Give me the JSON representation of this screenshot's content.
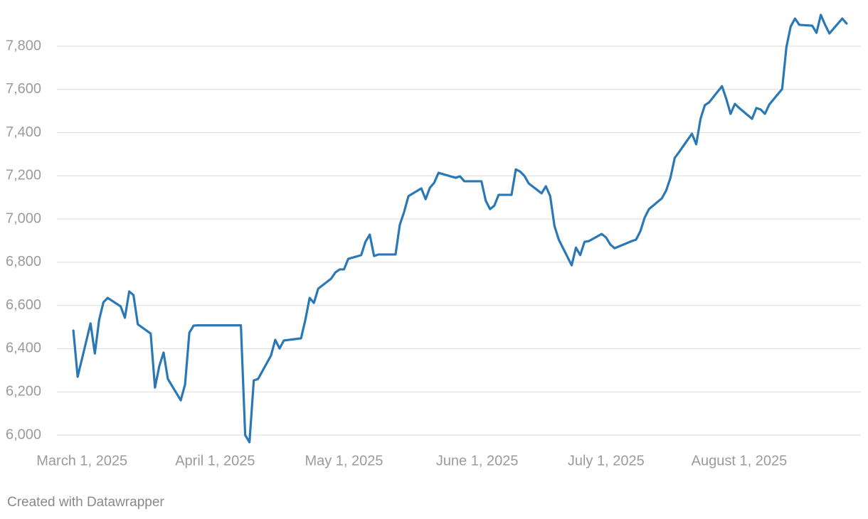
{
  "chart_data": {
    "type": "line",
    "x": [
      "2025-02-27",
      "2025-02-28",
      "2025-03-03",
      "2025-03-04",
      "2025-03-05",
      "2025-03-06",
      "2025-03-07",
      "2025-03-10",
      "2025-03-11",
      "2025-03-12",
      "2025-03-13",
      "2025-03-14",
      "2025-03-17",
      "2025-03-18",
      "2025-03-19",
      "2025-03-20",
      "2025-03-21",
      "2025-03-24",
      "2025-03-25",
      "2025-03-26",
      "2025-03-27",
      "2025-03-28",
      "2025-03-31",
      "2025-04-01",
      "2025-04-02",
      "2025-04-03",
      "2025-04-04",
      "2025-04-07",
      "2025-04-08",
      "2025-04-09",
      "2025-04-10",
      "2025-04-11",
      "2025-04-14",
      "2025-04-15",
      "2025-04-16",
      "2025-04-17",
      "2025-04-21",
      "2025-04-22",
      "2025-04-23",
      "2025-04-24",
      "2025-04-25",
      "2025-04-28",
      "2025-04-29",
      "2025-04-30",
      "2025-05-01",
      "2025-05-02",
      "2025-05-05",
      "2025-05-06",
      "2025-05-07",
      "2025-05-08",
      "2025-05-09",
      "2025-05-12",
      "2025-05-13",
      "2025-05-14",
      "2025-05-15",
      "2025-05-16",
      "2025-05-19",
      "2025-05-20",
      "2025-05-21",
      "2025-05-22",
      "2025-05-23",
      "2025-05-27",
      "2025-05-28",
      "2025-05-29",
      "2025-05-30",
      "2025-06-02",
      "2025-06-03",
      "2025-06-04",
      "2025-06-05",
      "2025-06-06",
      "2025-06-09",
      "2025-06-10",
      "2025-06-11",
      "2025-06-12",
      "2025-06-13",
      "2025-06-16",
      "2025-06-17",
      "2025-06-18",
      "2025-06-19",
      "2025-06-20",
      "2025-06-23",
      "2025-06-24",
      "2025-06-25",
      "2025-06-26",
      "2025-06-27",
      "2025-06-30",
      "2025-07-01",
      "2025-07-02",
      "2025-07-03",
      "2025-07-07",
      "2025-07-08",
      "2025-07-09",
      "2025-07-10",
      "2025-07-11",
      "2025-07-14",
      "2025-07-15",
      "2025-07-16",
      "2025-07-17",
      "2025-07-18",
      "2025-07-21",
      "2025-07-22",
      "2025-07-23",
      "2025-07-24",
      "2025-07-25",
      "2025-07-28",
      "2025-07-29",
      "2025-07-30",
      "2025-07-31",
      "2025-08-01",
      "2025-08-04",
      "2025-08-05",
      "2025-08-06",
      "2025-08-07",
      "2025-08-08",
      "2025-08-11",
      "2025-08-12",
      "2025-08-13",
      "2025-08-14",
      "2025-08-15",
      "2025-08-18",
      "2025-08-19",
      "2025-08-20",
      "2025-08-21",
      "2025-08-22",
      "2025-08-25",
      "2025-08-26"
    ],
    "values": [
      6484,
      6270,
      6517,
      6378,
      6533,
      6615,
      6635,
      6596,
      6543,
      6665,
      6648,
      6513,
      6470,
      6220,
      6319,
      6382,
      6260,
      6161,
      6234,
      6474,
      6507,
      6508,
      6508,
      6508,
      6508,
      6508,
      6508,
      6508,
      6000,
      5967,
      6253,
      6260,
      6368,
      6441,
      6401,
      6438,
      6448,
      6533,
      6635,
      6612,
      6678,
      6724,
      6753,
      6767,
      6767,
      6816,
      6833,
      6895,
      6928,
      6829,
      6836,
      6836,
      6836,
      6974,
      7033,
      7106,
      7142,
      7092,
      7145,
      7168,
      7214,
      7191,
      7198,
      7175,
      7175,
      7175,
      7085,
      7046,
      7062,
      7112,
      7112,
      7230,
      7220,
      7200,
      7165,
      7119,
      7152,
      7106,
      6968,
      6905,
      6786,
      6868,
      6833,
      6895,
      6898,
      6931,
      6915,
      6882,
      6865,
      6898,
      6905,
      6944,
      7007,
      7046,
      7096,
      7132,
      7191,
      7283,
      7310,
      7395,
      7346,
      7464,
      7527,
      7540,
      7615,
      7556,
      7487,
      7533,
      7514,
      7464,
      7514,
      7507,
      7487,
      7530,
      7602,
      7797,
      7892,
      7928,
      7899,
      7895,
      7862,
      7945,
      7899,
      7859,
      7928,
      7905
    ],
    "color": "#2a78b5",
    "xlim": [
      "2025-02-24",
      "2025-08-29"
    ],
    "xticks": [
      {
        "value": "2025-03-01",
        "label": "March 1, 2025"
      },
      {
        "value": "2025-04-01",
        "label": "April 1, 2025"
      },
      {
        "value": "2025-05-01",
        "label": "May 1, 2025"
      },
      {
        "value": "2025-06-01",
        "label": "June 1, 2025"
      },
      {
        "value": "2025-07-01",
        "label": "July 1, 2025"
      },
      {
        "value": "2025-08-01",
        "label": "August 1, 2025"
      }
    ],
    "ylim": [
      5950,
      7980
    ],
    "yticks": [
      {
        "value": 6000,
        "label": "6,000"
      },
      {
        "value": 6200,
        "label": "6,200"
      },
      {
        "value": 6400,
        "label": "6,400"
      },
      {
        "value": 6600,
        "label": "6,600"
      },
      {
        "value": 6800,
        "label": "6,800"
      },
      {
        "value": 7000,
        "label": "7,000"
      },
      {
        "value": 7200,
        "label": "7,200"
      },
      {
        "value": 7400,
        "label": "7,400"
      },
      {
        "value": 7600,
        "label": "7,600"
      },
      {
        "value": 7800,
        "label": "7,800"
      }
    ],
    "grid": true,
    "credit": "Created with Datawrapper"
  }
}
